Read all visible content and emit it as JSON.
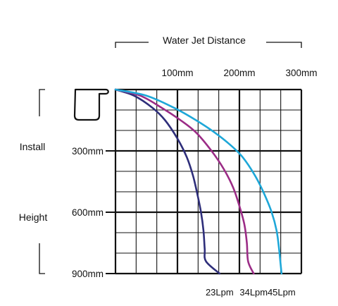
{
  "chart_data": {
    "type": "line",
    "title": "Water Jet Distance",
    "xlabel": "Water Jet Distance",
    "ylabel_lines": [
      "Install",
      "Height"
    ],
    "x_ticks": [
      {
        "value": 100,
        "label": "100mm"
      },
      {
        "value": 200,
        "label": "200mm"
      },
      {
        "value": 300,
        "label": "300mm"
      }
    ],
    "y_ticks": [
      {
        "value": 300,
        "label": "300mm"
      },
      {
        "value": 600,
        "label": "600mm"
      },
      {
        "value": 900,
        "label": "900mm"
      }
    ],
    "xlim": [
      0,
      300
    ],
    "ylim": [
      0,
      900
    ],
    "y_inverted": true,
    "grid": true,
    "series": [
      {
        "name": "23Lpm",
        "color": "#2e2e7a",
        "points": [
          [
            0,
            0
          ],
          [
            30,
            30
          ],
          [
            60,
            90
          ],
          [
            80,
            150
          ],
          [
            100,
            240
          ],
          [
            115,
            330
          ],
          [
            125,
            420
          ],
          [
            132,
            510
          ],
          [
            138,
            600
          ],
          [
            142,
            690
          ],
          [
            144,
            780
          ],
          [
            146,
            840
          ],
          [
            168,
            900
          ]
        ]
      },
      {
        "name": "34Lpm",
        "color": "#9b2c86",
        "points": [
          [
            0,
            0
          ],
          [
            40,
            30
          ],
          [
            75,
            90
          ],
          [
            105,
            150
          ],
          [
            130,
            210
          ],
          [
            155,
            300
          ],
          [
            175,
            390
          ],
          [
            190,
            480
          ],
          [
            200,
            570
          ],
          [
            208,
            660
          ],
          [
            212,
            750
          ],
          [
            214,
            840
          ],
          [
            223,
            900
          ]
        ]
      },
      {
        "name": "45Lpm",
        "color": "#1ea7d8",
        "points": [
          [
            0,
            0
          ],
          [
            50,
            30
          ],
          [
            95,
            90
          ],
          [
            130,
            150
          ],
          [
            160,
            210
          ],
          [
            185,
            270
          ],
          [
            205,
            330
          ],
          [
            225,
            420
          ],
          [
            240,
            510
          ],
          [
            252,
            600
          ],
          [
            260,
            690
          ],
          [
            264,
            780
          ],
          [
            266,
            840
          ],
          [
            268,
            900
          ]
        ]
      }
    ]
  },
  "icons": {
    "fitting": "water-jet-fitting-icon"
  }
}
